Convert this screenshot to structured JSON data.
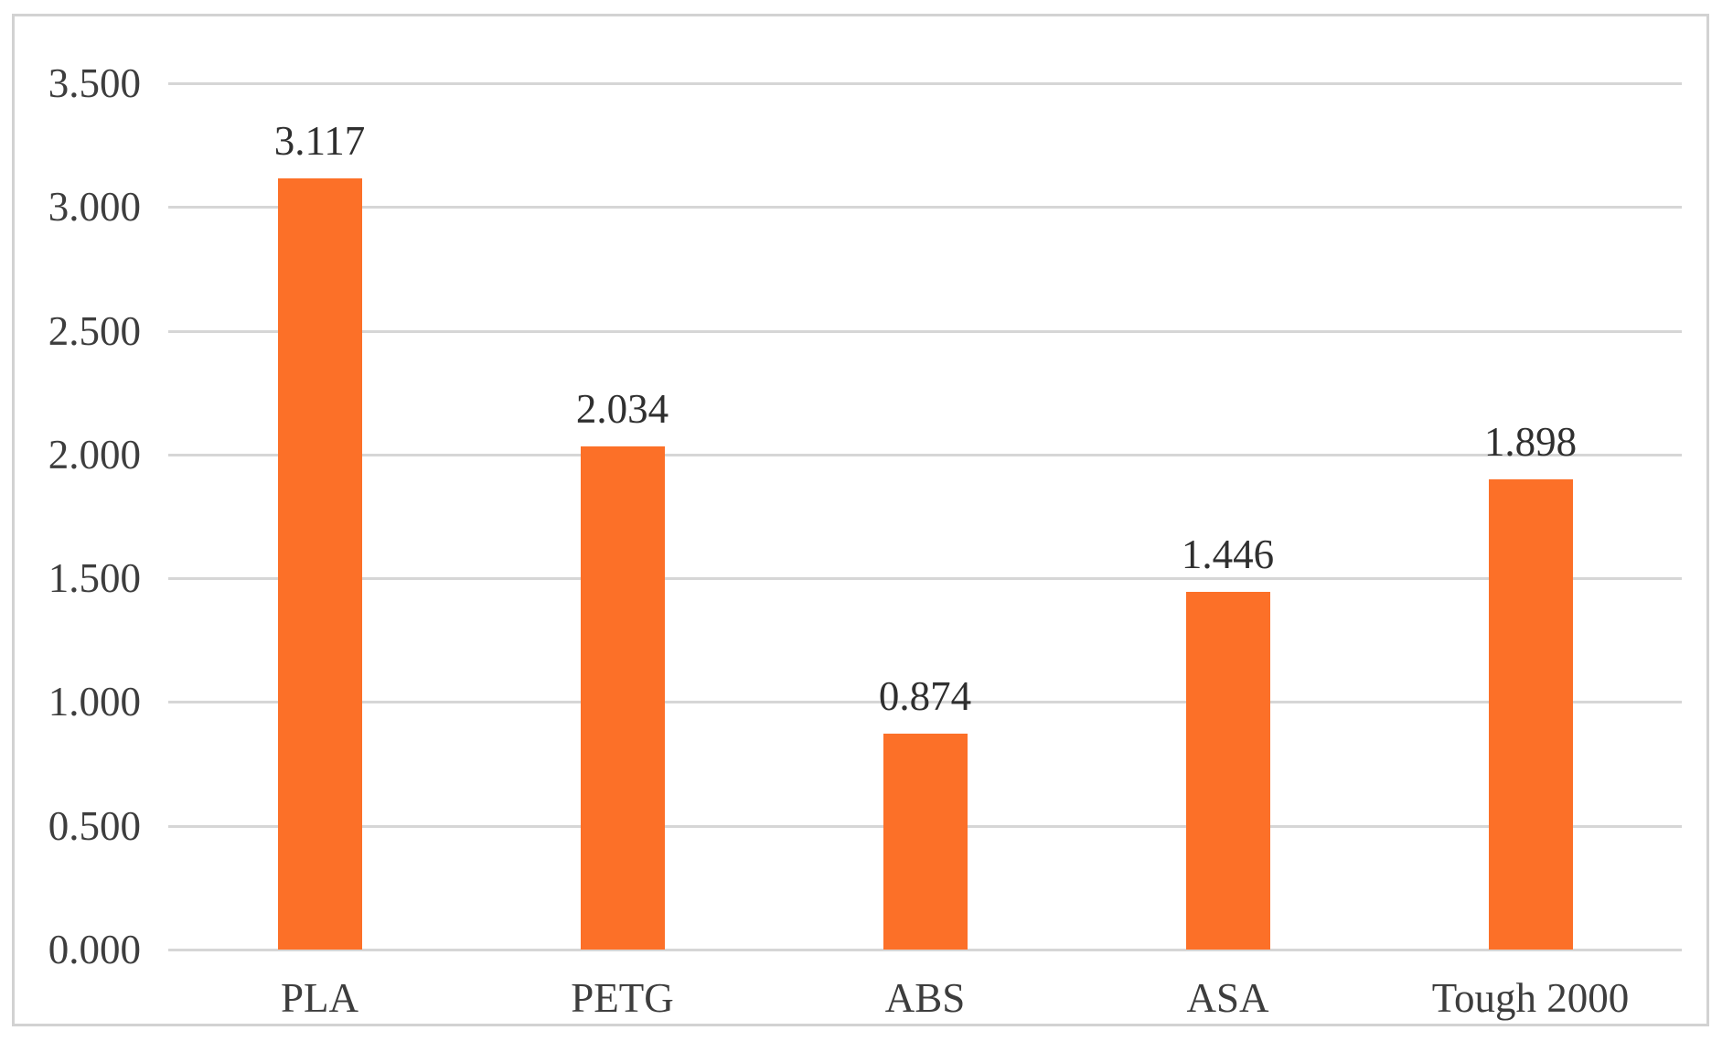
{
  "chart_data": {
    "type": "bar",
    "title": "",
    "xlabel": "",
    "ylabel": "",
    "categories": [
      "PLA",
      "PETG",
      "ABS",
      "ASA",
      "Tough 2000"
    ],
    "values": [
      3.117,
      2.034,
      0.874,
      1.446,
      1.898
    ],
    "value_labels": [
      "3.117",
      "2.034",
      "0.874",
      "1.446",
      "1.898"
    ],
    "ylim": [
      0,
      3.5
    ],
    "y_ticks": [
      {
        "label": "0.000",
        "value": 0.0
      },
      {
        "label": "0.500",
        "value": 0.5
      },
      {
        "label": "1.000",
        "value": 1.0
      },
      {
        "label": "1.500",
        "value": 1.5
      },
      {
        "label": "2.000",
        "value": 2.0
      },
      {
        "label": "2.500",
        "value": 2.5
      },
      {
        "label": "3.000",
        "value": 3.0
      },
      {
        "label": "3.500",
        "value": 3.5
      }
    ],
    "grid": true,
    "legend": false,
    "colors": {
      "bar": "#fc7028",
      "gridline": "#d6d6d6",
      "frame_border": "#d2d2d2",
      "tick_text": "#3d3d3d",
      "value_text": "#2f2f2f",
      "background": "#ffffff"
    }
  }
}
